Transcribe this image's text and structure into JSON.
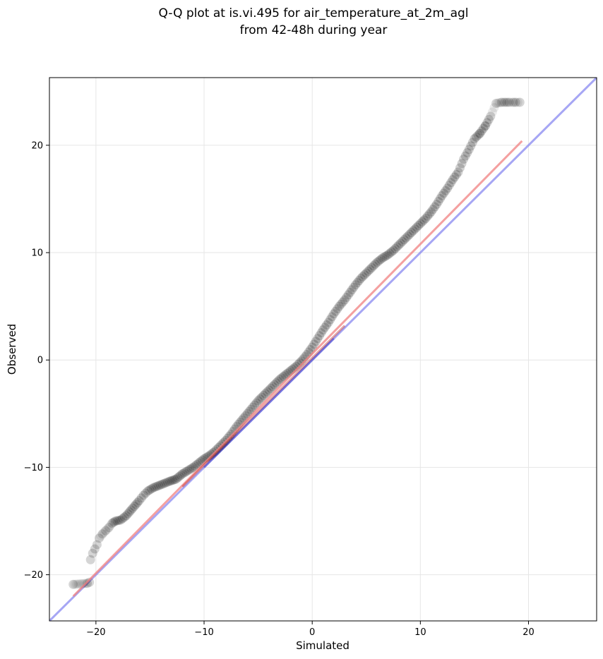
{
  "chart_data": {
    "type": "scatter",
    "title": "Q-Q plot at is.vi.495 for air_temperature_at_2m_agl",
    "subtitle": "from 42-48h during year",
    "xlabel": "Simulated",
    "ylabel": "Observed",
    "xlim": [
      -24.3,
      26.3
    ],
    "ylim": [
      -24.3,
      26.3
    ],
    "xticks": [
      -20,
      -10,
      0,
      10,
      20
    ],
    "yticks": [
      -20,
      -10,
      0,
      10,
      20
    ],
    "xtick_labels": [
      "−20",
      "−10",
      "0",
      "10",
      "20"
    ],
    "ytick_labels": [
      "−20",
      "−10",
      "0",
      "10",
      "20"
    ],
    "grid": true,
    "colors": {
      "points": "#000000",
      "fit_line": "#f08080",
      "identity_line": "#8080f0",
      "inner_red": "#b00000",
      "inner_blue": "#0000b0"
    },
    "series": [
      {
        "marker": "quantile-points",
        "x": [
          -22.1,
          -20.8,
          -20.6,
          -20.5,
          -20.3,
          -20.1,
          -19.9,
          -19.7,
          -19.4,
          -19.1,
          -18.8,
          -18.5,
          -18.2,
          -17.7,
          -17.2,
          -16.6,
          -16.0,
          -15.6,
          -15.2,
          -14.7,
          -14.2,
          -13.7,
          -13.2,
          -12.6,
          -12.0,
          -11.5,
          -11.0,
          -10.5,
          -10.0,
          -9.5,
          -9.0,
          -8.5,
          -8.0,
          -7.5,
          -7.0,
          -6.5,
          -6.0,
          -5.5,
          -5.0,
          -4.5,
          -4.0,
          -3.5,
          -3.0,
          -2.5,
          -2.0,
          -1.5,
          -1.0,
          -0.5,
          0.0,
          0.5,
          1.0,
          1.5,
          2.0,
          2.5,
          3.0,
          3.5,
          4.0,
          4.5,
          5.0,
          5.5,
          6.0,
          6.5,
          7.0,
          7.5,
          8.0,
          8.5,
          9.0,
          9.5,
          10.0,
          10.5,
          11.0,
          11.5,
          12.0,
          12.5,
          13.0,
          13.5,
          14.0,
          14.5,
          15.0,
          15.5,
          16.0,
          16.5,
          17.0,
          17.5,
          17.8,
          18.0,
          18.2,
          18.6,
          18.8,
          19.2
        ],
        "y": [
          -20.9,
          -20.8,
          -20.7,
          -18.6,
          -18.0,
          -17.6,
          -17.2,
          -16.6,
          -16.2,
          -15.9,
          -15.6,
          -15.2,
          -15.0,
          -14.9,
          -14.5,
          -13.8,
          -13.1,
          -12.6,
          -12.2,
          -11.9,
          -11.7,
          -11.5,
          -11.3,
          -11.1,
          -10.6,
          -10.3,
          -10.0,
          -9.6,
          -9.2,
          -8.9,
          -8.5,
          -8.0,
          -7.5,
          -6.9,
          -6.2,
          -5.6,
          -5.0,
          -4.4,
          -3.8,
          -3.3,
          -2.8,
          -2.3,
          -1.8,
          -1.4,
          -1.0,
          -0.6,
          -0.1,
          0.5,
          1.2,
          2.0,
          2.8,
          3.5,
          4.3,
          5.0,
          5.6,
          6.3,
          7.0,
          7.6,
          8.1,
          8.6,
          9.1,
          9.5,
          9.8,
          10.2,
          10.7,
          11.2,
          11.7,
          12.2,
          12.7,
          13.2,
          13.8,
          14.5,
          15.3,
          16.0,
          16.8,
          17.5,
          18.7,
          19.6,
          20.6,
          21.1,
          21.8,
          22.7,
          23.9,
          24.0,
          24.0,
          24.0,
          24.0,
          24.0,
          24.0,
          24.0
        ]
      }
    ],
    "fit_line": {
      "x": [
        -22.1,
        19.4
      ],
      "y": [
        -22.0,
        20.4
      ]
    },
    "identity_line": {
      "x": [
        -26.3,
        26.3
      ],
      "y": [
        -26.3,
        26.3
      ]
    }
  }
}
